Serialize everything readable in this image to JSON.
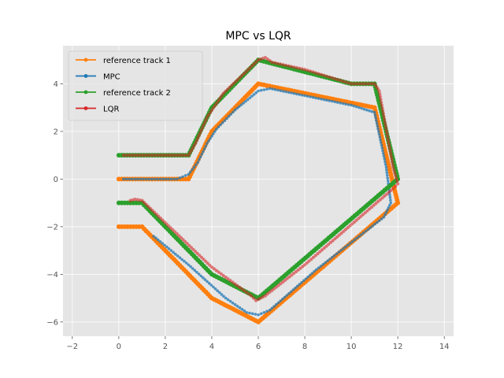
{
  "chart_data": {
    "type": "line",
    "title": "MPC vs LQR",
    "xlabel": "",
    "ylabel": "",
    "xlim": [
      -2.4,
      14.4
    ],
    "ylim": [
      -6.6,
      5.6
    ],
    "xticks": [
      -2,
      0,
      2,
      4,
      6,
      8,
      10,
      12,
      14
    ],
    "yticks": [
      -6,
      -4,
      -2,
      0,
      2,
      4
    ],
    "grid": true,
    "legend_position": "top-left",
    "series": [
      {
        "name": "reference track 1",
        "color": "#ff7f0e",
        "marker_size": 3.0,
        "line_width": 1.8,
        "points": [
          [
            0,
            0
          ],
          [
            3,
            0
          ],
          [
            4,
            2
          ],
          [
            6,
            4
          ],
          [
            11,
            3
          ],
          [
            12,
            -1
          ],
          [
            6,
            -6
          ],
          [
            4,
            -5
          ],
          [
            1,
            -2
          ],
          [
            0,
            -2
          ]
        ]
      },
      {
        "name": "MPC",
        "color": "#1f77b4",
        "marker_size": 1.8,
        "line_width": 1.1,
        "alpha": 0.75,
        "points": [
          [
            0.2,
            0
          ],
          [
            2.5,
            0
          ],
          [
            3.0,
            0.2
          ],
          [
            3.4,
            0.7
          ],
          [
            3.8,
            1.5
          ],
          [
            4.2,
            2.1
          ],
          [
            5.0,
            2.9
          ],
          [
            6.0,
            3.7
          ],
          [
            6.5,
            3.8
          ],
          [
            8.0,
            3.5
          ],
          [
            10.0,
            3.1
          ],
          [
            11.0,
            2.8
          ],
          [
            11.5,
            0.5
          ],
          [
            11.7,
            -1.0
          ],
          [
            11.4,
            -1.6
          ],
          [
            8.5,
            -3.8
          ],
          [
            6.5,
            -5.5
          ],
          [
            6.0,
            -5.7
          ],
          [
            5.5,
            -5.6
          ],
          [
            4.6,
            -5.0
          ],
          [
            3.0,
            -3.6
          ],
          [
            1.5,
            -2.4
          ]
        ]
      },
      {
        "name": "reference track 2",
        "color": "#2ca02c",
        "marker_size": 3.0,
        "line_width": 1.8,
        "points": [
          [
            0,
            1
          ],
          [
            3,
            1
          ],
          [
            4,
            3
          ],
          [
            6,
            5
          ],
          [
            10,
            4
          ],
          [
            11,
            4
          ],
          [
            12,
            0
          ],
          [
            6,
            -5
          ],
          [
            4,
            -4
          ],
          [
            1,
            -1
          ],
          [
            0,
            -1
          ]
        ]
      },
      {
        "name": "LQR",
        "color": "#d62728",
        "marker_size": 2.1,
        "line_width": 1.1,
        "alpha": 0.6,
        "points": [
          [
            0.2,
            1
          ],
          [
            3.0,
            1
          ],
          [
            3.3,
            1.5
          ],
          [
            3.8,
            2.6
          ],
          [
            4.5,
            3.6
          ],
          [
            6.0,
            5.0
          ],
          [
            6.3,
            5.1
          ],
          [
            6.6,
            4.9
          ],
          [
            8.0,
            4.6
          ],
          [
            10.0,
            4.0
          ],
          [
            11.0,
            4.0
          ],
          [
            11.2,
            3.7
          ],
          [
            11.8,
            0.5
          ],
          [
            12.0,
            -0.2
          ],
          [
            11.8,
            -0.4
          ],
          [
            8.0,
            -3.6
          ],
          [
            6.3,
            -4.9
          ],
          [
            5.9,
            -5.1
          ],
          [
            5.7,
            -4.9
          ],
          [
            4.0,
            -3.7
          ],
          [
            1.0,
            -0.9
          ],
          [
            0.7,
            -0.85
          ],
          [
            0.5,
            -0.9
          ]
        ]
      }
    ]
  }
}
